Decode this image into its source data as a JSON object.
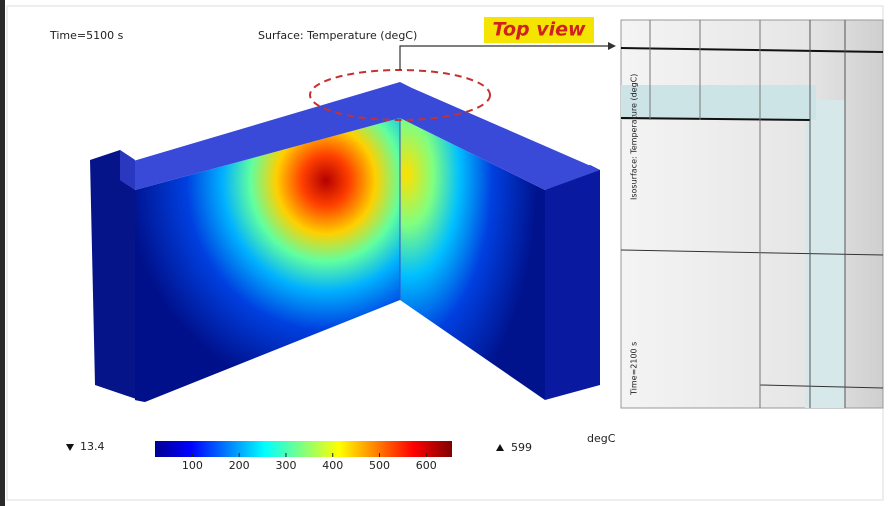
{
  "header": {
    "time": "Time=5100 s",
    "title": "Surface: Temperature (degC)"
  },
  "annotation": "Top view",
  "top_view": {
    "title": "Isosurface: Temperature (degC)",
    "time": "Time=2100 s"
  },
  "legend": {
    "min": 13.4,
    "max": 599,
    "unit": "degC",
    "lim": [
      20,
      655
    ],
    "ticks": [
      100,
      200,
      300,
      400,
      500,
      600
    ]
  }
}
